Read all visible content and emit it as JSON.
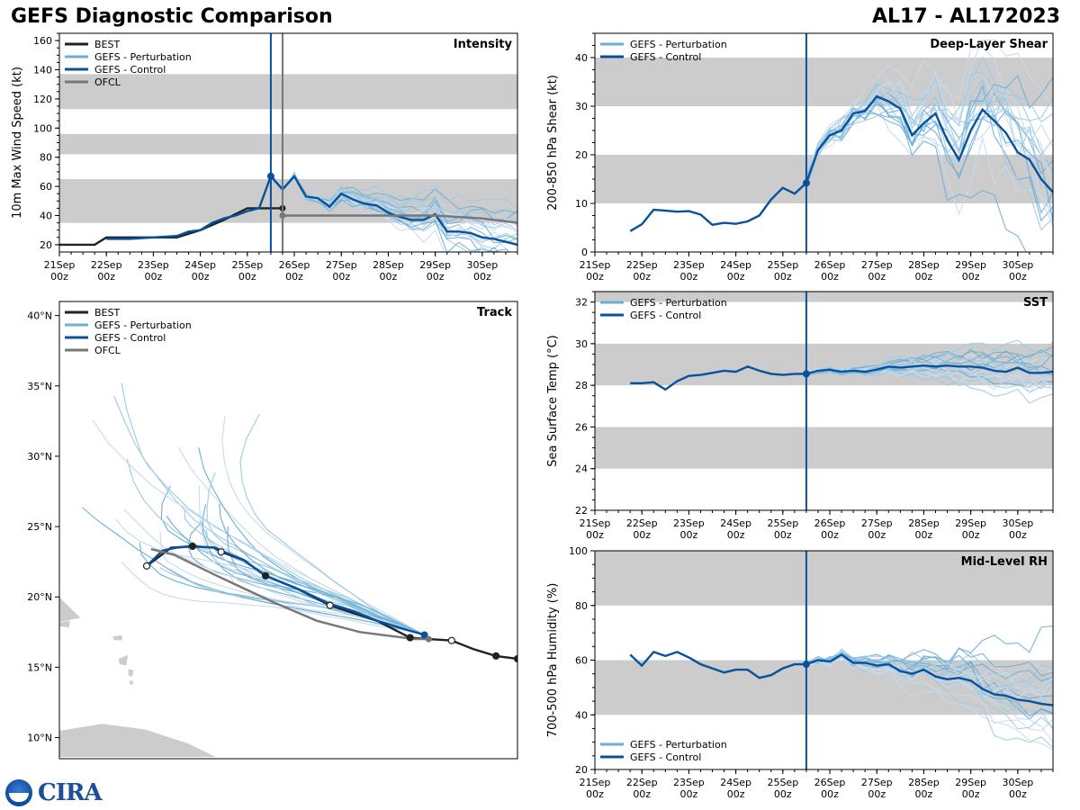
{
  "header": {
    "title": "GEFS Diagnostic Comparison",
    "storm": "AL17 - AL172023"
  },
  "logo_text": "CIRA",
  "colors": {
    "best": "#222222",
    "perturbation": "#6baed6",
    "control": "#08519c",
    "ofcl": "#777777",
    "band": "#cccccc",
    "land": "#cccccc"
  },
  "x_ticks": [
    "21Sep\n00z",
    "22Sep\n00z",
    "23Sep\n00z",
    "24Sep\n00z",
    "25Sep\n00z",
    "26Sep\n00z",
    "27Sep\n00z",
    "28Sep\n00z",
    "29Sep\n00z",
    "30Sep\n00z"
  ],
  "chart_data": [
    {
      "id": "intensity",
      "type": "line",
      "title": "Intensity",
      "ylabel": "10m Max Wind Speed (kt)",
      "ylim": [
        15,
        165
      ],
      "yticks": [
        20,
        40,
        60,
        80,
        100,
        120,
        140,
        160
      ],
      "xlim": [
        0,
        9.75
      ],
      "init_line": 4.5,
      "ofcl_line": 4.75,
      "bands": [
        [
          35,
          65
        ],
        [
          82,
          96
        ],
        [
          113,
          137
        ]
      ],
      "legend": [
        "BEST",
        "GEFS - Perturbation",
        "GEFS - Control",
        "OFCL"
      ],
      "series": [
        {
          "name": "BEST",
          "x": [
            0,
            0.75,
            1,
            2,
            2.5,
            3,
            3.5,
            4,
            4.5,
            4.75
          ],
          "values": [
            20,
            20,
            25,
            25,
            25,
            30,
            37,
            45,
            45,
            45
          ]
        },
        {
          "name": "GEFS - Control",
          "x": [
            1,
            1.5,
            2,
            2.5,
            2.75,
            3,
            3.25,
            3.5,
            3.75,
            4,
            4.25,
            4.5,
            4.75,
            5,
            5.25,
            5.5,
            5.75,
            6,
            6.25,
            6.5,
            6.75,
            7,
            7.25,
            7.5,
            7.75,
            8,
            8.25,
            8.5,
            8.75,
            9,
            9.25,
            9.5,
            9.75
          ],
          "values": [
            24,
            24,
            25,
            26,
            29,
            30,
            35,
            38,
            40,
            43,
            45,
            67,
            58,
            67,
            53,
            52,
            46,
            55,
            51,
            48,
            47,
            42,
            39,
            37,
            37,
            41,
            29,
            29,
            28,
            25,
            24,
            22,
            20
          ]
        },
        {
          "name": "OFCL",
          "x": [
            4.75,
            5,
            6,
            7,
            8,
            9,
            9.75
          ],
          "values": [
            40,
            40,
            40,
            40,
            40,
            38,
            35
          ]
        }
      ]
    },
    {
      "id": "shear",
      "type": "line",
      "title": "Deep-Layer Shear",
      "ylabel": "200-850 hPa Shear (kt)",
      "ylim": [
        0,
        45
      ],
      "yticks": [
        0,
        10,
        20,
        30,
        40
      ],
      "xlim": [
        0,
        9.75
      ],
      "init_line": 4.5,
      "bands": [
        [
          10,
          20
        ],
        [
          30,
          40
        ]
      ],
      "legend": [
        "GEFS - Perturbation",
        "GEFS - Control"
      ],
      "series": [
        {
          "name": "GEFS - Control",
          "x": [
            0.75,
            1,
            1.25,
            1.5,
            1.75,
            2,
            2.25,
            2.5,
            2.75,
            3,
            3.25,
            3.5,
            3.75,
            4,
            4.25,
            4.5,
            4.75,
            5,
            5.25,
            5.5,
            5.75,
            6,
            6.25,
            6.5,
            6.75,
            7,
            7.25,
            7.5,
            7.75,
            8,
            8.25,
            8.5,
            8.75,
            9,
            9.25,
            9.5,
            9.75
          ],
          "values": [
            4.3,
            5.7,
            8.7,
            8.5,
            8.3,
            8.4,
            7.7,
            5.6,
            6,
            5.8,
            6.3,
            7.5,
            10.8,
            13.2,
            12,
            14.2,
            21,
            24,
            25,
            28.5,
            29,
            32,
            31,
            29.5,
            24,
            26.5,
            28.5,
            23,
            19,
            25,
            29.3,
            27,
            24.5,
            20.5,
            19,
            15,
            12.3
          ]
        }
      ]
    },
    {
      "id": "sst",
      "type": "line",
      "title": "SST",
      "ylabel": "Sea Surface Temp (°C)",
      "ylim": [
        22,
        32.5
      ],
      "yticks": [
        22,
        24,
        26,
        28,
        30,
        32
      ],
      "xlim": [
        0,
        9.75
      ],
      "init_line": 4.5,
      "bands": [
        [
          24,
          26
        ],
        [
          28,
          30
        ],
        [
          32,
          32.5
        ]
      ],
      "legend": [
        "GEFS - Perturbation",
        "GEFS - Control"
      ],
      "series": [
        {
          "name": "GEFS - Control",
          "x": [
            0.75,
            1,
            1.25,
            1.5,
            1.75,
            2,
            2.25,
            2.5,
            2.75,
            3,
            3.25,
            3.5,
            3.75,
            4,
            4.25,
            4.5,
            4.75,
            5,
            5.25,
            5.5,
            5.75,
            6,
            6.25,
            6.5,
            6.75,
            7,
            7.25,
            7.5,
            7.75,
            8,
            8.25,
            8.5,
            8.75,
            9,
            9.25,
            9.5,
            9.75
          ],
          "values": [
            28.1,
            28.1,
            28.15,
            27.8,
            28.2,
            28.45,
            28.5,
            28.6,
            28.7,
            28.65,
            28.9,
            28.7,
            28.55,
            28.5,
            28.55,
            28.55,
            28.7,
            28.75,
            28.65,
            28.7,
            28.65,
            28.75,
            28.9,
            28.85,
            28.9,
            28.95,
            28.9,
            28.95,
            28.9,
            28.9,
            28.85,
            28.7,
            28.65,
            28.85,
            28.6,
            28.6,
            28.65
          ]
        }
      ]
    },
    {
      "id": "rh",
      "type": "line",
      "title": "Mid-Level RH",
      "ylabel": "700-500 hPa Humidity (%)",
      "ylim": [
        20,
        100
      ],
      "yticks": [
        20,
        40,
        60,
        80,
        100
      ],
      "xlim": [
        0,
        9.75
      ],
      "init_line": 4.5,
      "bands": [
        [
          40,
          60
        ],
        [
          80,
          100
        ]
      ],
      "legend": [
        "GEFS - Perturbation",
        "GEFS - Control"
      ],
      "series": [
        {
          "name": "GEFS - Control",
          "x": [
            0.75,
            1,
            1.25,
            1.5,
            1.75,
            2,
            2.25,
            2.5,
            2.75,
            3,
            3.25,
            3.5,
            3.75,
            4,
            4.25,
            4.5,
            4.75,
            5,
            5.25,
            5.5,
            5.75,
            6,
            6.25,
            6.5,
            6.75,
            7,
            7.25,
            7.5,
            7.75,
            8,
            8.25,
            8.5,
            8.75,
            9,
            9.25,
            9.5,
            9.75
          ],
          "values": [
            62,
            58,
            63,
            61.5,
            63,
            61,
            58.5,
            57,
            55.5,
            56.5,
            56.5,
            53.5,
            54.5,
            57,
            58.5,
            58.5,
            60,
            59.5,
            62,
            59,
            59,
            58,
            58.5,
            56,
            55,
            56.5,
            54,
            53,
            53.5,
            52.5,
            49.5,
            47.5,
            47,
            45.5,
            45,
            44,
            43.5
          ]
        }
      ]
    },
    {
      "id": "track",
      "type": "scatter",
      "title": "Track",
      "ylim": [
        8.5,
        41
      ],
      "yticks": [
        10,
        15,
        20,
        25,
        30,
        35,
        40
      ],
      "yticklabels": [
        "10°N",
        "15°N",
        "20°N",
        "25°N",
        "30°N",
        "35°N",
        "40°N"
      ],
      "xlim": [
        -66,
        -34
      ],
      "legend": [
        "BEST",
        "GEFS - Perturbation",
        "GEFS - Control",
        "OFCL"
      ],
      "series": [
        {
          "name": "BEST",
          "lon": [
            -34,
            -35.5,
            -37.1,
            -38.6,
            -40.2,
            -41.5,
            -43.8,
            -47.1,
            -49.4,
            -51.6,
            -53.1,
            -54.7,
            -55.2,
            -56.7,
            -58.2,
            -59.9
          ],
          "lat": [
            15.6,
            15.8,
            16.3,
            16.9,
            17.0,
            17.1,
            18.3,
            19.4,
            20.6,
            21.5,
            22.6,
            23.2,
            23.5,
            23.6,
            23.5,
            22.2
          ]
        },
        {
          "name": "GEFS - Control",
          "lon": [
            -40.5,
            -41.5,
            -43.8,
            -45.5,
            -47.1,
            -49.2,
            -51.6,
            -53.1,
            -54.7,
            -55.1,
            -56.7,
            -57.8,
            -58.8,
            -59.9
          ],
          "lat": [
            17.3,
            17.6,
            18.3,
            19.0,
            19.5,
            20.5,
            21.5,
            22.6,
            23.3,
            23.5,
            23.6,
            23.5,
            23.3,
            22.2
          ]
        },
        {
          "name": "OFCL",
          "lon": [
            -40.2,
            -41.2,
            -45,
            -48,
            -51,
            -55,
            -58,
            -59.6
          ],
          "lat": [
            17.0,
            17.0,
            17.5,
            18.3,
            19.6,
            21.5,
            23.0,
            23.4
          ]
        }
      ]
    }
  ]
}
